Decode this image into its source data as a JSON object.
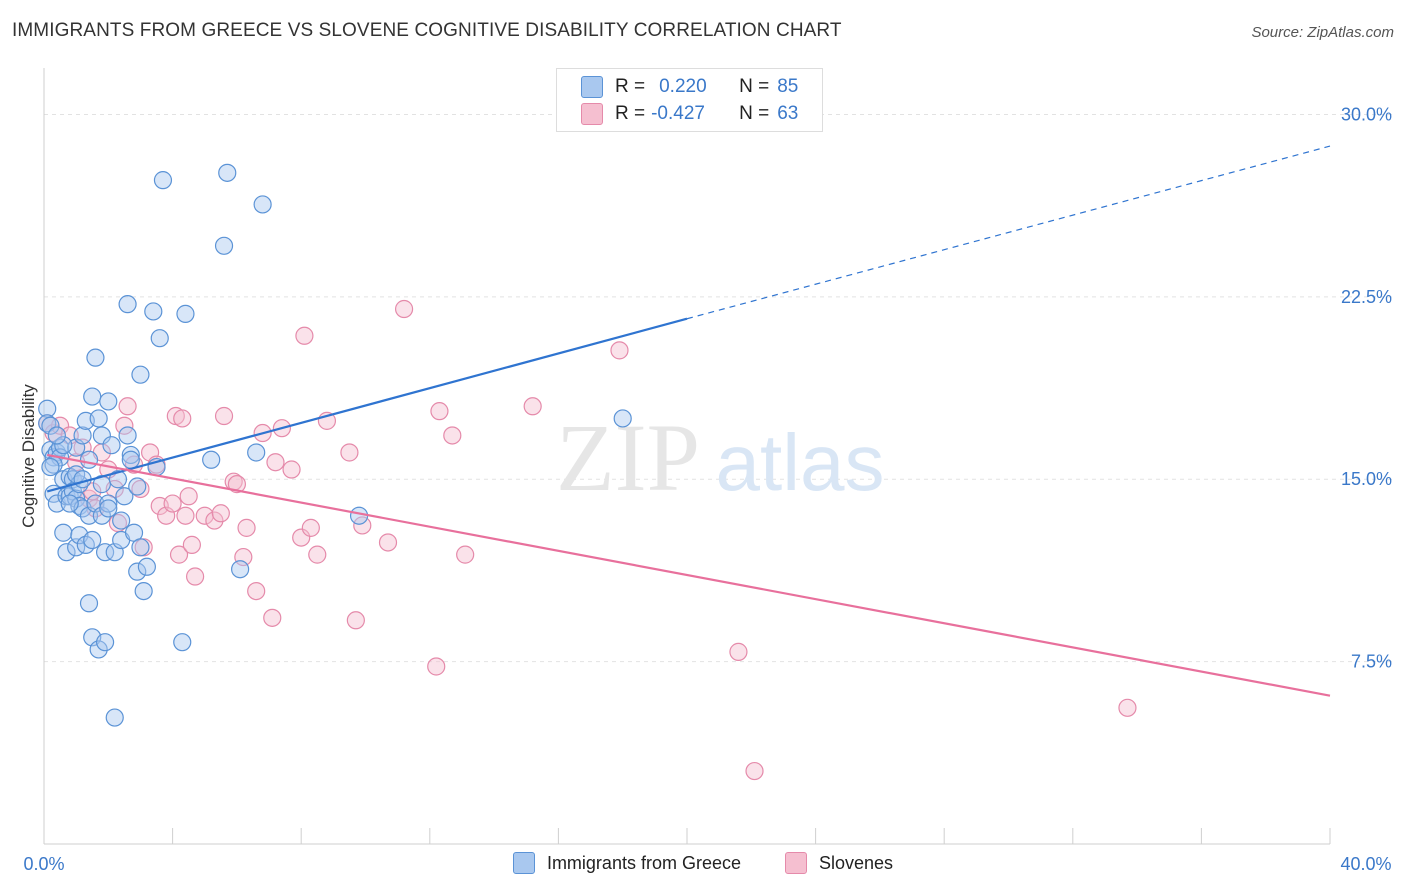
{
  "title": "IMMIGRANTS FROM GREECE VS SLOVENE COGNITIVE DISABILITY CORRELATION CHART",
  "source": "Source: ZipAtlas.com",
  "watermark": {
    "zip": "ZIP",
    "atlas": "atlas"
  },
  "legend": {
    "rows": [
      {
        "r_label": "R =",
        "r_value": "0.220",
        "n_label": "N =",
        "n_value": "85"
      },
      {
        "r_label": "R =",
        "r_value": "-0.427",
        "n_label": "N =",
        "n_value": "63"
      }
    ]
  },
  "colors": {
    "blue_fill": "#a9c8ef",
    "blue_stroke": "#5b93d6",
    "blue_line": "#2f74d0",
    "pink_fill": "#f5bfd0",
    "pink_stroke": "#e58aaa",
    "pink_line": "#e8709c",
    "grid": "#e2e2e2",
    "axis_text": "#3a78c9"
  },
  "chart_data": {
    "type": "scatter",
    "title": "IMMIGRANTS FROM GREECE VS SLOVENE COGNITIVE DISABILITY CORRELATION CHART",
    "xlabel": "",
    "ylabel": "Cognitive Disability",
    "xlim": [
      0,
      40
    ],
    "ylim": [
      0,
      31.5
    ],
    "x_tick_labels": [
      "0.0%",
      "40.0%"
    ],
    "y_ticks": [
      7.5,
      15.0,
      22.5,
      30.0
    ],
    "y_tick_labels": [
      "7.5%",
      "15.0%",
      "22.5%",
      "30.0%"
    ],
    "grid": true,
    "legend_position": "top-center",
    "series": [
      {
        "name": "Immigrants from Greece",
        "color": "#5b93d6",
        "r": 0.22,
        "n": 85,
        "trend": {
          "x0": 0.1,
          "y0": 14.5,
          "x1": 20.0,
          "y1": 21.6,
          "dash_to_x": 40.0,
          "dash_to_y": 28.7
        },
        "points": [
          [
            0.1,
            17.9
          ],
          [
            0.1,
            17.3
          ],
          [
            0.2,
            16.2
          ],
          [
            0.2,
            17.2
          ],
          [
            0.3,
            15.9
          ],
          [
            0.3,
            14.4
          ],
          [
            0.4,
            14.0
          ],
          [
            0.4,
            16.1
          ],
          [
            0.5,
            16.3
          ],
          [
            0.5,
            15.9
          ],
          [
            0.6,
            15.0
          ],
          [
            0.6,
            12.8
          ],
          [
            0.7,
            14.3
          ],
          [
            0.7,
            12.0
          ],
          [
            0.8,
            14.3
          ],
          [
            0.8,
            15.1
          ],
          [
            0.9,
            15.0
          ],
          [
            0.9,
            14.5
          ],
          [
            1.0,
            14.2
          ],
          [
            1.0,
            12.2
          ],
          [
            1.0,
            16.3
          ],
          [
            1.1,
            14.8
          ],
          [
            1.1,
            12.7
          ],
          [
            1.1,
            13.9
          ],
          [
            1.2,
            16.8
          ],
          [
            1.2,
            13.8
          ],
          [
            1.3,
            17.4
          ],
          [
            1.3,
            12.3
          ],
          [
            1.4,
            15.8
          ],
          [
            1.4,
            13.5
          ],
          [
            1.4,
            9.9
          ],
          [
            1.5,
            18.4
          ],
          [
            1.5,
            12.5
          ],
          [
            1.5,
            8.5
          ],
          [
            1.6,
            20.0
          ],
          [
            1.6,
            14.0
          ],
          [
            1.7,
            17.5
          ],
          [
            1.7,
            8.0
          ],
          [
            1.8,
            16.8
          ],
          [
            1.8,
            13.5
          ],
          [
            1.8,
            14.8
          ],
          [
            1.9,
            8.3
          ],
          [
            1.9,
            12.0
          ],
          [
            2.0,
            18.2
          ],
          [
            2.0,
            14.0
          ],
          [
            2.0,
            13.8
          ],
          [
            2.1,
            16.4
          ],
          [
            2.2,
            12.0
          ],
          [
            2.2,
            5.2
          ],
          [
            2.3,
            15.0
          ],
          [
            2.4,
            12.5
          ],
          [
            2.5,
            14.3
          ],
          [
            2.6,
            16.8
          ],
          [
            2.6,
            22.2
          ],
          [
            2.7,
            16.0
          ],
          [
            2.7,
            15.8
          ],
          [
            2.8,
            12.8
          ],
          [
            2.9,
            11.2
          ],
          [
            2.9,
            14.7
          ],
          [
            3.0,
            12.2
          ],
          [
            3.0,
            19.3
          ],
          [
            3.1,
            10.4
          ],
          [
            3.2,
            11.4
          ],
          [
            3.4,
            21.9
          ],
          [
            3.6,
            20.8
          ],
          [
            3.7,
            27.3
          ],
          [
            4.3,
            8.3
          ],
          [
            4.4,
            21.8
          ],
          [
            5.2,
            15.8
          ],
          [
            5.6,
            24.6
          ],
          [
            5.7,
            27.6
          ],
          [
            6.1,
            11.3
          ],
          [
            6.6,
            16.1
          ],
          [
            6.8,
            26.3
          ],
          [
            9.8,
            13.5
          ],
          [
            18.0,
            17.5
          ],
          [
            0.3,
            15.6
          ],
          [
            0.6,
            16.4
          ],
          [
            1.0,
            15.2
          ],
          [
            0.4,
            16.8
          ],
          [
            1.2,
            15.0
          ],
          [
            0.8,
            14.0
          ],
          [
            2.4,
            13.3
          ],
          [
            0.2,
            15.5
          ],
          [
            3.5,
            15.5
          ]
        ]
      },
      {
        "name": "Slovenes",
        "color": "#e58aaa",
        "r": -0.427,
        "n": 63,
        "trend": {
          "x0": 0.1,
          "y0": 16.0,
          "x1": 40.0,
          "y1": 6.1
        },
        "points": [
          [
            0.1,
            17.3
          ],
          [
            0.3,
            16.9
          ],
          [
            0.5,
            17.2
          ],
          [
            0.8,
            16.8
          ],
          [
            1.0,
            15.7
          ],
          [
            1.2,
            16.3
          ],
          [
            1.4,
            14.2
          ],
          [
            1.5,
            14.5
          ],
          [
            1.6,
            13.8
          ],
          [
            1.8,
            16.1
          ],
          [
            2.0,
            15.4
          ],
          [
            2.2,
            14.6
          ],
          [
            2.3,
            13.2
          ],
          [
            2.5,
            17.2
          ],
          [
            2.6,
            18.0
          ],
          [
            2.8,
            15.6
          ],
          [
            3.0,
            14.6
          ],
          [
            3.1,
            12.2
          ],
          [
            3.3,
            16.1
          ],
          [
            3.5,
            15.6
          ],
          [
            3.6,
            13.9
          ],
          [
            3.8,
            13.5
          ],
          [
            4.0,
            14.0
          ],
          [
            4.1,
            17.6
          ],
          [
            4.2,
            11.9
          ],
          [
            4.3,
            17.5
          ],
          [
            4.4,
            13.5
          ],
          [
            4.5,
            14.3
          ],
          [
            4.6,
            12.3
          ],
          [
            4.7,
            11.0
          ],
          [
            5.0,
            13.5
          ],
          [
            5.3,
            13.3
          ],
          [
            5.5,
            13.6
          ],
          [
            5.6,
            17.6
          ],
          [
            5.9,
            14.9
          ],
          [
            6.0,
            14.8
          ],
          [
            6.2,
            11.8
          ],
          [
            6.3,
            13.0
          ],
          [
            6.6,
            10.4
          ],
          [
            6.8,
            16.9
          ],
          [
            7.1,
            9.3
          ],
          [
            7.2,
            15.7
          ],
          [
            7.4,
            17.1
          ],
          [
            7.7,
            15.4
          ],
          [
            8.0,
            12.6
          ],
          [
            8.1,
            20.9
          ],
          [
            8.3,
            13.0
          ],
          [
            8.5,
            11.9
          ],
          [
            8.8,
            17.4
          ],
          [
            9.5,
            16.1
          ],
          [
            9.7,
            9.2
          ],
          [
            9.9,
            13.1
          ],
          [
            10.7,
            12.4
          ],
          [
            11.2,
            22.0
          ],
          [
            12.2,
            7.3
          ],
          [
            12.3,
            17.8
          ],
          [
            12.7,
            16.8
          ],
          [
            13.1,
            11.9
          ],
          [
            15.2,
            18.0
          ],
          [
            17.9,
            20.3
          ],
          [
            21.6,
            7.9
          ],
          [
            22.1,
            3.0
          ],
          [
            33.7,
            5.6
          ]
        ]
      }
    ]
  },
  "bottom_legend": [
    {
      "label": "Immigrants from Greece"
    },
    {
      "label": "Slovenes"
    }
  ]
}
